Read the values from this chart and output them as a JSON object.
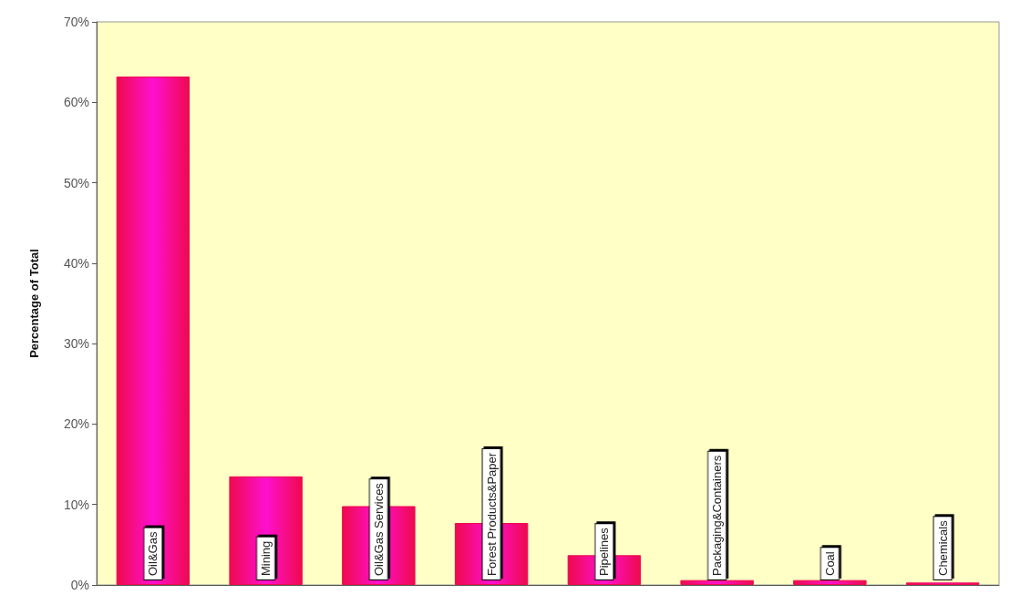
{
  "chart_data": {
    "type": "bar",
    "ylabel": "Percentage of Total",
    "categories": [
      "Oil&Gas",
      "Mining",
      "Oil&Gas Services",
      "Forest Products&Paper",
      "Pipelines",
      "Packaging&Containers",
      "Coal",
      "Chemicals"
    ],
    "values": [
      63.2,
      13.5,
      9.8,
      7.7,
      3.7,
      0.6,
      0.6,
      0.3
    ],
    "color": "#ee0a4e",
    "ylim": [
      0,
      70
    ],
    "yticks": [
      {
        "value": 0,
        "label": "0%"
      },
      {
        "value": 10,
        "label": "10%"
      },
      {
        "value": 20,
        "label": "20%"
      },
      {
        "value": 30,
        "label": "30%"
      },
      {
        "value": 40,
        "label": "40%"
      },
      {
        "value": 50,
        "label": "50%"
      },
      {
        "value": 60,
        "label": "60%"
      },
      {
        "value": 70,
        "label": "70%"
      }
    ],
    "grid": false
  }
}
